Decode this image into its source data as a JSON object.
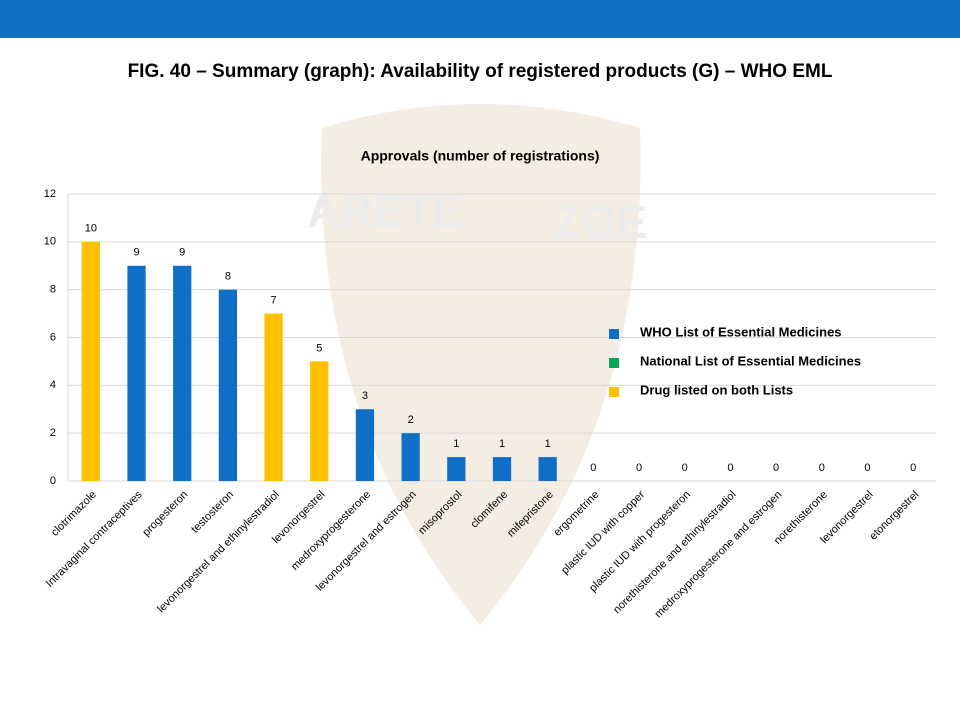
{
  "figure_title": "FIG. 40 – Summary (graph): Availability of registered products (G) – WHO EML",
  "watermark": [
    "ARETE",
    "ZOE"
  ],
  "chart_data": {
    "type": "bar",
    "title": "Approvals (number of registrations)",
    "categories": [
      "clotrimazole",
      "Intravaginal contraceptives",
      "progesteron",
      "testosteron",
      "levonorgestrel and ethinylestradiol",
      "levonorgestrel",
      "medroxyprogesterone",
      "levonorgestrel and estrogen",
      "misoprostol",
      "clomifene",
      "mifepristone",
      "ergometrine",
      "plastic IUD with copper",
      "plastic IUD with progesteron",
      "norethisterone and ethinylestradiol",
      "medroxyprogesterone and estrogen",
      "norethisterone",
      "levonorgestrel",
      "etonorgestrel"
    ],
    "series": [
      {
        "name": "WHO List of Essential Medicines",
        "color": "#0f6fc6",
        "values": [
          null,
          9,
          9,
          8,
          null,
          null,
          3,
          2,
          1,
          1,
          1,
          0,
          0,
          0,
          0,
          0,
          0,
          0,
          0
        ]
      },
      {
        "name": "National List of Essential Medicines",
        "color": "#00a651",
        "values": [
          null,
          null,
          null,
          null,
          null,
          null,
          null,
          null,
          null,
          null,
          null,
          null,
          null,
          null,
          null,
          null,
          null,
          null,
          null
        ]
      },
      {
        "name": "Drug listed on both Lists",
        "color": "#ffc000",
        "values": [
          10,
          null,
          null,
          null,
          7,
          5,
          null,
          null,
          null,
          null,
          null,
          null,
          null,
          null,
          null,
          null,
          null,
          null,
          null
        ]
      }
    ],
    "ylim": [
      0,
      12
    ],
    "yticks": [
      0,
      2,
      4,
      6,
      8,
      10,
      12
    ],
    "grid": true
  }
}
